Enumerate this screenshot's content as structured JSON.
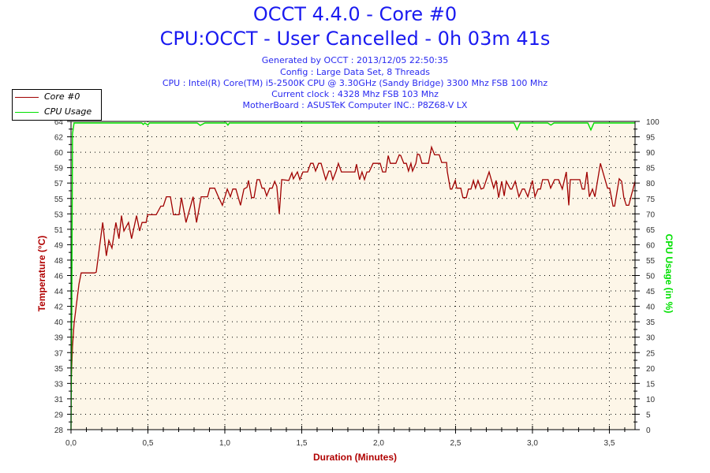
{
  "title": "OCCT 4.4.0 - Core #0",
  "subtitle": "CPU:OCCT - User Cancelled - 0h 03m 41s",
  "info": [
    "Generated by OCCT : 2013/12/05 22:50:35",
    "Config : Large Data Set, 8 Threads",
    "CPU : Intel(R) Core(TM) i5-2500K CPU @ 3.30GHz (Sandy Bridge) 3300 Mhz FSB 100 Mhz",
    "Current clock : 4328 Mhz FSB 103 Mhz",
    "MotherBoard : ASUSTeK Computer INC.: P8Z68-V LX"
  ],
  "colors": {
    "title": "#1a1af0",
    "temp": "#a00000",
    "cpu": "#00e000",
    "plot_bg": "#fdf6e8",
    "temp_label": "#b00000"
  },
  "chart_data": {
    "type": "line",
    "xlabel": "Duration (Minutes)",
    "ylabel": "Temperature (°C)",
    "y2label": "CPU Usage (in %)",
    "xlim": [
      0,
      3.667
    ],
    "ylim": [
      28,
      64
    ],
    "y2lim": [
      0,
      100
    ],
    "grid": true,
    "legend_position": "top-left",
    "x_ticks": [
      "0,0",
      "0,5",
      "1,0",
      "1,5",
      "2,0",
      "2,5",
      "3,0",
      "3,5"
    ],
    "x_tick_values": [
      0,
      0.5,
      1,
      1.5,
      2,
      2.5,
      3,
      3.5
    ],
    "y_ticks": [
      "28",
      "29",
      "31",
      "33",
      "35",
      "37",
      "39",
      "40",
      "42",
      "44",
      "46",
      "48",
      "49",
      "51",
      "53",
      "55",
      "57",
      "59",
      "60",
      "62",
      "64"
    ],
    "y2_ticks": [
      "0",
      "5",
      "10",
      "15",
      "20",
      "25",
      "30",
      "35",
      "40",
      "45",
      "50",
      "55",
      "60",
      "65",
      "70",
      "75",
      "80",
      "85",
      "90",
      "95",
      "100"
    ],
    "series": [
      {
        "name": "Core #0",
        "axis": "left",
        "points": [
          [
            0,
            33.2
          ],
          [
            0.01,
            37.7
          ],
          [
            0.02,
            40.4
          ],
          [
            0.036,
            42.7
          ],
          [
            0.052,
            45
          ],
          [
            0.066,
            46.3
          ],
          [
            0.154,
            46.3
          ],
          [
            0.164,
            46.4
          ],
          [
            0.206,
            52.2
          ],
          [
            0.23,
            48.3
          ],
          [
            0.246,
            50.1
          ],
          [
            0.266,
            49.2
          ],
          [
            0.292,
            52.2
          ],
          [
            0.312,
            50.3
          ],
          [
            0.328,
            53
          ],
          [
            0.344,
            51.2
          ],
          [
            0.374,
            52.2
          ],
          [
            0.394,
            50.3
          ],
          [
            0.426,
            53
          ],
          [
            0.446,
            51.2
          ],
          [
            0.462,
            52.2
          ],
          [
            0.488,
            52.2
          ],
          [
            0.498,
            53.1
          ],
          [
            0.554,
            53.1
          ],
          [
            0.584,
            54.1
          ],
          [
            0.6,
            54.1
          ],
          [
            0.62,
            55.2
          ],
          [
            0.646,
            55.2
          ],
          [
            0.666,
            53.1
          ],
          [
            0.702,
            53.1
          ],
          [
            0.718,
            55.1
          ],
          [
            0.748,
            52.2
          ],
          [
            0.794,
            55.2
          ],
          [
            0.816,
            52.2
          ],
          [
            0.846,
            55.2
          ],
          [
            0.888,
            55.2
          ],
          [
            0.902,
            56.2
          ],
          [
            0.934,
            56.2
          ],
          [
            0.958,
            55.2
          ],
          [
            0.984,
            54.2
          ],
          [
            1.016,
            56.1
          ],
          [
            1.036,
            55.2
          ],
          [
            1.052,
            56.1
          ],
          [
            1.072,
            56.1
          ],
          [
            1.102,
            54.2
          ],
          [
            1.124,
            56.1
          ],
          [
            1.144,
            56.3
          ],
          [
            1.154,
            57.1
          ],
          [
            1.174,
            55.1
          ],
          [
            1.19,
            55.1
          ],
          [
            1.21,
            57.2
          ],
          [
            1.226,
            57.2
          ],
          [
            1.242,
            56.2
          ],
          [
            1.256,
            56.2
          ],
          [
            1.272,
            55.3
          ],
          [
            1.292,
            56.2
          ],
          [
            1.308,
            56.2
          ],
          [
            1.324,
            57
          ],
          [
            1.338,
            56.4
          ],
          [
            1.354,
            53.2
          ],
          [
            1.37,
            57.2
          ],
          [
            1.416,
            57.1
          ],
          [
            1.436,
            58
          ],
          [
            1.446,
            57.3
          ],
          [
            1.472,
            58.1
          ],
          [
            1.488,
            57.2
          ],
          [
            1.508,
            58.1
          ],
          [
            1.538,
            58.1
          ],
          [
            1.558,
            59.1
          ],
          [
            1.574,
            59.1
          ],
          [
            1.59,
            58.2
          ],
          [
            1.61,
            59.1
          ],
          [
            1.626,
            59.1
          ],
          [
            1.656,
            57.2
          ],
          [
            1.676,
            58.2
          ],
          [
            1.688,
            58.2
          ],
          [
            1.702,
            57.2
          ],
          [
            1.724,
            58.2
          ],
          [
            1.738,
            59.1
          ],
          [
            1.758,
            58.1
          ],
          [
            1.846,
            58.1
          ],
          [
            1.856,
            59
          ],
          [
            1.876,
            57.2
          ],
          [
            1.892,
            58.1
          ],
          [
            1.908,
            57.2
          ],
          [
            1.924,
            58.1
          ],
          [
            1.938,
            58.1
          ],
          [
            1.964,
            59.1
          ],
          [
            2.01,
            59.1
          ],
          [
            2.026,
            58.1
          ],
          [
            2.046,
            58.1
          ],
          [
            2.062,
            60
          ],
          [
            2.076,
            59.1
          ],
          [
            2.112,
            59.1
          ],
          [
            2.134,
            60.1
          ],
          [
            2.144,
            60
          ],
          [
            2.164,
            59.1
          ],
          [
            2.18,
            59.1
          ],
          [
            2.194,
            58.2
          ],
          [
            2.21,
            59.1
          ],
          [
            2.22,
            58.2
          ],
          [
            2.242,
            59.1
          ],
          [
            2.252,
            60.2
          ],
          [
            2.266,
            60.1
          ],
          [
            2.282,
            59.1
          ],
          [
            2.324,
            59.1
          ],
          [
            2.344,
            61
          ],
          [
            2.364,
            60.1
          ],
          [
            2.394,
            60.1
          ],
          [
            2.41,
            59.2
          ],
          [
            2.442,
            59.2
          ],
          [
            2.446,
            58.2
          ],
          [
            2.466,
            56.1
          ],
          [
            2.476,
            56.1
          ],
          [
            2.498,
            57.1
          ],
          [
            2.508,
            56.2
          ],
          [
            2.534,
            56.2
          ],
          [
            2.548,
            55.1
          ],
          [
            2.57,
            55.1
          ],
          [
            2.584,
            56.1
          ],
          [
            2.6,
            56.1
          ],
          [
            2.616,
            57.1
          ],
          [
            2.63,
            56.2
          ],
          [
            2.646,
            57.1
          ],
          [
            2.666,
            56.1
          ],
          [
            2.682,
            56.2
          ],
          [
            2.718,
            58.1
          ],
          [
            2.748,
            56.2
          ],
          [
            2.764,
            57.1
          ],
          [
            2.78,
            55.1
          ],
          [
            2.8,
            57
          ],
          [
            2.816,
            55.3
          ],
          [
            2.83,
            57
          ],
          [
            2.856,
            56.1
          ],
          [
            2.866,
            56.1
          ],
          [
            2.888,
            57
          ],
          [
            2.912,
            55.2
          ],
          [
            2.934,
            56.1
          ],
          [
            2.948,
            56.1
          ],
          [
            2.97,
            55.2
          ],
          [
            3.0,
            57.1
          ],
          [
            3.016,
            55.2
          ],
          [
            3.036,
            56.1
          ],
          [
            3.052,
            56.1
          ],
          [
            3.066,
            57.2
          ],
          [
            3.102,
            57.2
          ],
          [
            3.118,
            56.2
          ],
          [
            3.144,
            57.2
          ],
          [
            3.17,
            57.2
          ],
          [
            3.194,
            56.1
          ],
          [
            3.22,
            58.1
          ],
          [
            3.236,
            54.2
          ],
          [
            3.246,
            57.2
          ],
          [
            3.308,
            57.2
          ],
          [
            3.324,
            56.1
          ],
          [
            3.338,
            56.1
          ],
          [
            3.354,
            58.1
          ],
          [
            3.37,
            55.2
          ],
          [
            3.39,
            56.1
          ],
          [
            3.406,
            55.2
          ],
          [
            3.442,
            59.1
          ],
          [
            3.488,
            56.2
          ],
          [
            3.502,
            56.2
          ],
          [
            3.524,
            54.1
          ],
          [
            3.534,
            54.1
          ],
          [
            3.564,
            57.3
          ],
          [
            3.58,
            57
          ],
          [
            3.594,
            55.1
          ],
          [
            3.61,
            54.2
          ],
          [
            3.626,
            54.2
          ],
          [
            3.667,
            57
          ]
        ]
      },
      {
        "name": "CPU Usage",
        "axis": "right",
        "points": [
          [
            0,
            0
          ],
          [
            0.005,
            40
          ],
          [
            0.01,
            96
          ],
          [
            0.02,
            99.5
          ],
          [
            0.46,
            99.5
          ],
          [
            0.47,
            99
          ],
          [
            0.48,
            99.5
          ],
          [
            0.5,
            98.8
          ],
          [
            0.51,
            99.5
          ],
          [
            0.82,
            99.5
          ],
          [
            0.84,
            98.7
          ],
          [
            0.87,
            99.5
          ],
          [
            1.01,
            99.5
          ],
          [
            1.02,
            98.8
          ],
          [
            1.03,
            99.5
          ],
          [
            2.88,
            99.5
          ],
          [
            2.9,
            97.3
          ],
          [
            2.92,
            99.5
          ],
          [
            3.1,
            99.5
          ],
          [
            3.12,
            98.8
          ],
          [
            3.14,
            99.5
          ],
          [
            3.36,
            99.5
          ],
          [
            3.38,
            97.2
          ],
          [
            3.4,
            99.5
          ],
          [
            3.667,
            99.5
          ]
        ]
      }
    ]
  }
}
